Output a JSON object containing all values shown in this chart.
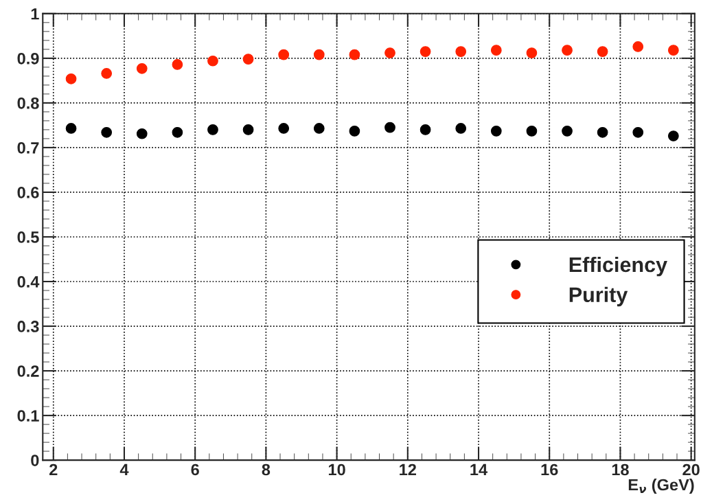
{
  "chart_data": {
    "type": "scatter",
    "xlabel": "E$_{ν}$ (GeV)",
    "x": [
      2.5,
      3.5,
      4.5,
      5.5,
      6.5,
      7.5,
      8.5,
      9.5,
      10.5,
      11.5,
      12.5,
      13.5,
      14.5,
      15.5,
      16.5,
      17.5,
      18.5,
      19.5
    ],
    "series": [
      {
        "name": "Efficiency",
        "color": "#000000",
        "values": [
          0.743,
          0.734,
          0.731,
          0.734,
          0.74,
          0.74,
          0.743,
          0.743,
          0.737,
          0.745,
          0.74,
          0.743,
          0.737,
          0.737,
          0.737,
          0.734,
          0.734,
          0.726
        ]
      },
      {
        "name": "Purity",
        "color": "#ff2200",
        "values": [
          0.854,
          0.866,
          0.877,
          0.886,
          0.894,
          0.898,
          0.908,
          0.908,
          0.908,
          0.912,
          0.915,
          0.915,
          0.918,
          0.912,
          0.918,
          0.915,
          0.926,
          0.918
        ]
      }
    ],
    "xlim": [
      1.7,
      20.1
    ],
    "xticks": [
      2,
      4,
      6,
      8,
      10,
      12,
      14,
      16,
      18,
      20
    ],
    "ylim": [
      0,
      1
    ],
    "yticks": [
      0,
      0.1,
      0.2,
      0.3,
      0.4,
      0.5,
      0.6,
      0.7,
      0.8,
      0.9,
      1
    ],
    "grid": true,
    "legend": "right",
    "marker": "circle"
  }
}
